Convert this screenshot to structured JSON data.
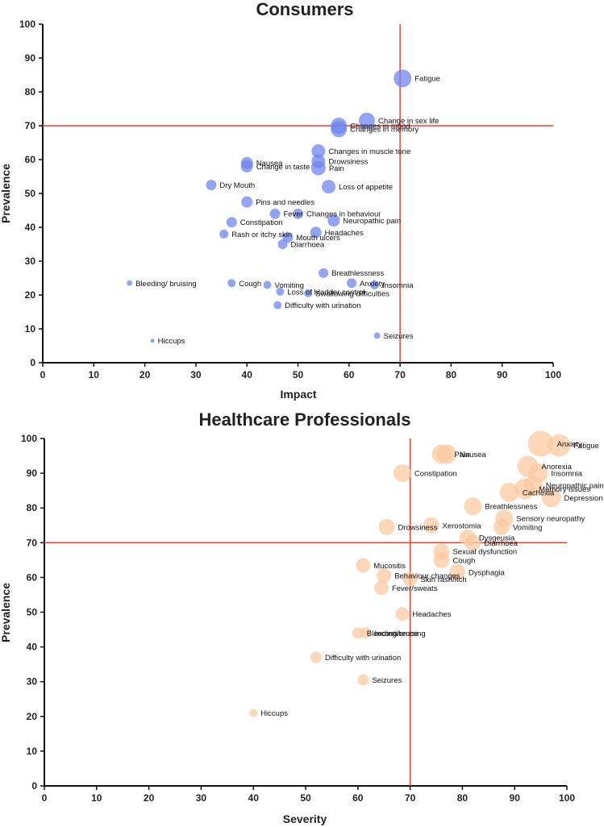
{
  "chart_data": [
    {
      "type": "scatter",
      "title": "Consumers",
      "xlabel": "Impact",
      "ylabel": "Prevalence",
      "xlim": [
        0,
        100
      ],
      "ylim": [
        0,
        100
      ],
      "xticks": [
        0,
        10,
        20,
        30,
        40,
        50,
        60,
        70,
        80,
        90,
        100
      ],
      "yticks": [
        0,
        10,
        20,
        30,
        40,
        50,
        60,
        70,
        80,
        90,
        100
      ],
      "ref_x": 70,
      "ref_y": 70,
      "color": "#6d86ef",
      "line_color": "#e8412e",
      "points": [
        {
          "label": "Fatigue",
          "x": 70.5,
          "y": 84,
          "size": 11
        },
        {
          "label": "Change in sex life",
          "x": 63.5,
          "y": 71.5,
          "size": 10
        },
        {
          "label": "Changes in mood",
          "x": 58,
          "y": 70,
          "size": 10
        },
        {
          "label": "Changes in memory",
          "x": 58,
          "y": 69,
          "size": 10
        },
        {
          "label": "Changes in muscle tone",
          "x": 54,
          "y": 62.5,
          "size": 8.5
        },
        {
          "label": "Drowsiness",
          "x": 54,
          "y": 59.5,
          "size": 8.5
        },
        {
          "label": "Pain",
          "x": 54,
          "y": 57.5,
          "size": 9
        },
        {
          "label": "Nausea",
          "x": 40,
          "y": 59,
          "size": 7.5
        },
        {
          "label": "Change in taste",
          "x": 40,
          "y": 58,
          "size": 7.5
        },
        {
          "label": "Loss of appetite",
          "x": 56,
          "y": 52,
          "size": 8.5
        },
        {
          "label": "Dry Mouth",
          "x": 33,
          "y": 52.5,
          "size": 6.5
        },
        {
          "label": "Pins and needles",
          "x": 40,
          "y": 47.5,
          "size": 7
        },
        {
          "label": "Fever",
          "x": 45.5,
          "y": 44,
          "size": 6.5
        },
        {
          "label": "Changes in behaviour",
          "x": 50,
          "y": 44,
          "size": 6.5
        },
        {
          "label": "Neuropathic pain",
          "x": 57,
          "y": 42,
          "size": 7.5
        },
        {
          "label": "Constipation",
          "x": 37,
          "y": 41.5,
          "size": 6.5
        },
        {
          "label": "Headaches",
          "x": 53.5,
          "y": 38.5,
          "size": 7
        },
        {
          "label": "Rash or itchy skin",
          "x": 35.5,
          "y": 38,
          "size": 5.5
        },
        {
          "label": "Mouth ulcers",
          "x": 48,
          "y": 37,
          "size": 6.5
        },
        {
          "label": "Diarrhoea",
          "x": 47,
          "y": 35,
          "size": 6
        },
        {
          "label": "Breathlessness",
          "x": 55,
          "y": 26.5,
          "size": 6
        },
        {
          "label": "Anxiety",
          "x": 60.5,
          "y": 23.5,
          "size": 6
        },
        {
          "label": "Insomnia",
          "x": 65,
          "y": 23,
          "size": 5.5
        },
        {
          "label": "Bleeding/ bruising",
          "x": 17,
          "y": 23.5,
          "size": 3.5
        },
        {
          "label": "Cough",
          "x": 37,
          "y": 23.5,
          "size": 5
        },
        {
          "label": "Vomiting",
          "x": 44,
          "y": 23,
          "size": 5
        },
        {
          "label": "Loss of bladder control",
          "x": 46.5,
          "y": 21,
          "size": 5
        },
        {
          "label": "Swallowing difficulties",
          "x": 52,
          "y": 20.5,
          "size": 5
        },
        {
          "label": "Difficulty with urination",
          "x": 46,
          "y": 17,
          "size": 5
        },
        {
          "label": "Seizures",
          "x": 65.5,
          "y": 8,
          "size": 4
        },
        {
          "label": "Hiccups",
          "x": 21.5,
          "y": 6.5,
          "size": 2.5
        }
      ]
    },
    {
      "type": "scatter",
      "title": "Healthcare Professionals",
      "xlabel": "Severity",
      "ylabel": "Prevalence",
      "xlim": [
        0,
        100
      ],
      "ylim": [
        0,
        100
      ],
      "xticks": [
        0,
        10,
        20,
        30,
        40,
        50,
        60,
        70,
        80,
        90,
        100
      ],
      "yticks": [
        0,
        10,
        20,
        30,
        40,
        50,
        60,
        70,
        80,
        90,
        100
      ],
      "ref_x": 70,
      "ref_y": 70,
      "color": "#fbc9a0",
      "line_color": "#e8412e",
      "points": [
        {
          "label": "Fatigue",
          "x": 98.5,
          "y": 98,
          "size": 14
        },
        {
          "label": "Anxiety",
          "x": 95,
          "y": 98.5,
          "size": 16
        },
        {
          "label": "Pain",
          "x": 76,
          "y": 95.5,
          "size": 12
        },
        {
          "label": "Nausea",
          "x": 77,
          "y": 95.5,
          "size": 12
        },
        {
          "label": "Anorexia",
          "x": 92.5,
          "y": 92,
          "size": 13
        },
        {
          "label": "Insomnia",
          "x": 94.5,
          "y": 90,
          "size": 12
        },
        {
          "label": "Constipation",
          "x": 68.5,
          "y": 90,
          "size": 11
        },
        {
          "label": "Neuropathic pain",
          "x": 93.5,
          "y": 86.5,
          "size": 12
        },
        {
          "label": "Memory issues",
          "x": 92,
          "y": 85.5,
          "size": 13
        },
        {
          "label": "Cachexia",
          "x": 89,
          "y": 84.5,
          "size": 12
        },
        {
          "label": "Depression",
          "x": 97,
          "y": 83,
          "size": 12
        },
        {
          "label": "Breathlessness",
          "x": 82,
          "y": 80.5,
          "size": 11
        },
        {
          "label": "Sensory neuropathy",
          "x": 88,
          "y": 77,
          "size": 11
        },
        {
          "label": "Xerostomia",
          "x": 74,
          "y": 75,
          "size": 10
        },
        {
          "label": "Vomiting",
          "x": 87.5,
          "y": 74.5,
          "size": 10
        },
        {
          "label": "Drowsiness",
          "x": 65.5,
          "y": 74.5,
          "size": 10
        },
        {
          "label": "Dysgeusia",
          "x": 81,
          "y": 71.5,
          "size": 10
        },
        {
          "label": "Diarrhoea",
          "x": 82,
          "y": 70,
          "size": 10
        },
        {
          "label": "Sexual dysfunction",
          "x": 76,
          "y": 67.5,
          "size": 10
        },
        {
          "label": "Cough",
          "x": 76,
          "y": 65,
          "size": 10
        },
        {
          "label": "Mucositis",
          "x": 61,
          "y": 63.5,
          "size": 9
        },
        {
          "label": "Dysphagia",
          "x": 79,
          "y": 61.5,
          "size": 10
        },
        {
          "label": "Behaviour changes",
          "x": 65,
          "y": 60.5,
          "size": 9
        },
        {
          "label": "Skin rash/itch",
          "x": 70,
          "y": 59.5,
          "size": 9
        },
        {
          "label": "Fever/sweats",
          "x": 64.5,
          "y": 57,
          "size": 9
        },
        {
          "label": "Headaches",
          "x": 68.5,
          "y": 49.5,
          "size": 8.5
        },
        {
          "label": "Bleeding/bruising",
          "x": 60,
          "y": 44,
          "size": 7
        },
        {
          "label": "Incontinence",
          "x": 61.5,
          "y": 44,
          "size": 7
        },
        {
          "label": "Difficulty with urination",
          "x": 52,
          "y": 37,
          "size": 7
        },
        {
          "label": "Seizures",
          "x": 61,
          "y": 30.5,
          "size": 7
        },
        {
          "label": "Hiccups",
          "x": 40,
          "y": 21,
          "size": 5
        }
      ]
    }
  ]
}
